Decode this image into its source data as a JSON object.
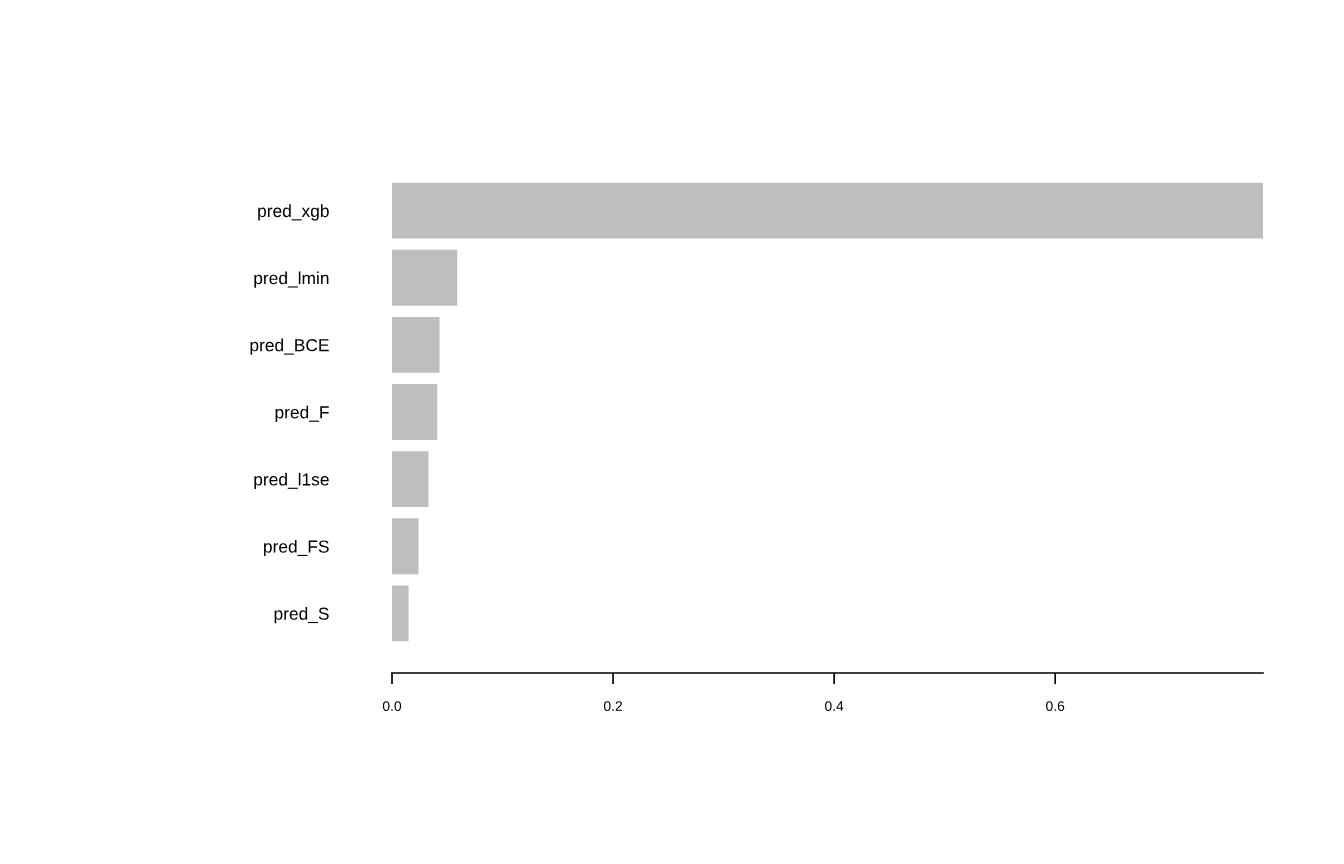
{
  "chart_data": {
    "type": "bar",
    "orientation": "horizontal",
    "categories": [
      "pred_xgb",
      "pred_lmin",
      "pred_BCE",
      "pred_F",
      "pred_l1se",
      "pred_FS",
      "pred_S"
    ],
    "values": [
      0.788,
      0.059,
      0.043,
      0.041,
      0.033,
      0.024,
      0.015
    ],
    "color": "#bebebe",
    "xlim": [
      0,
      0.788
    ],
    "xticks": [
      {
        "value": 0,
        "label": "0.0"
      },
      {
        "value": 0.2,
        "label": "0.2"
      },
      {
        "value": 0.4,
        "label": "0.4"
      },
      {
        "value": 0.6,
        "label": "0.6"
      }
    ],
    "grid": false
  }
}
